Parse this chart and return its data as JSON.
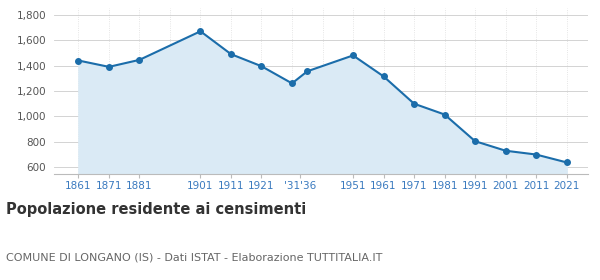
{
  "years": [
    1861,
    1871,
    1881,
    1901,
    1911,
    1921,
    1931,
    1936,
    1951,
    1961,
    1971,
    1981,
    1991,
    2001,
    2011,
    2021
  ],
  "population": [
    1440,
    1390,
    1445,
    1670,
    1490,
    1395,
    1260,
    1355,
    1480,
    1315,
    1100,
    1015,
    805,
    730,
    700,
    638
  ],
  "line_color": "#1b6daa",
  "fill_color": "#daeaf5",
  "marker_color": "#1b6daa",
  "bg_color": "#ffffff",
  "grid_color_h": "#cccccc",
  "grid_color_v": "#dddddd",
  "ylim": [
    550,
    1850
  ],
  "yticks": [
    600,
    800,
    1000,
    1200,
    1400,
    1600,
    1800
  ],
  "xtick_positions": [
    1861,
    1871,
    1881,
    1901,
    1911,
    1921,
    1933.5,
    1951,
    1961,
    1971,
    1981,
    1991,
    2001,
    2011,
    2021
  ],
  "xtick_labels": [
    "1861",
    "1871",
    "1881",
    "1901",
    "1911",
    "1921",
    "'31'36",
    "1951",
    "1961",
    "1971",
    "1981",
    "1991",
    "2001",
    "2011",
    "2021"
  ],
  "xlim": [
    1853,
    2028
  ],
  "title": "Popolazione residente ai censimenti",
  "title_fontsize": 10.5,
  "title_color": "#333333",
  "subtitle": "COMUNE DI LONGANO (IS) - Dati ISTAT - Elaborazione TUTTITALIA.IT",
  "subtitle_fontsize": 8,
  "subtitle_color": "#666666",
  "tick_label_color": "#3a7abf",
  "ytick_label_color": "#555555"
}
